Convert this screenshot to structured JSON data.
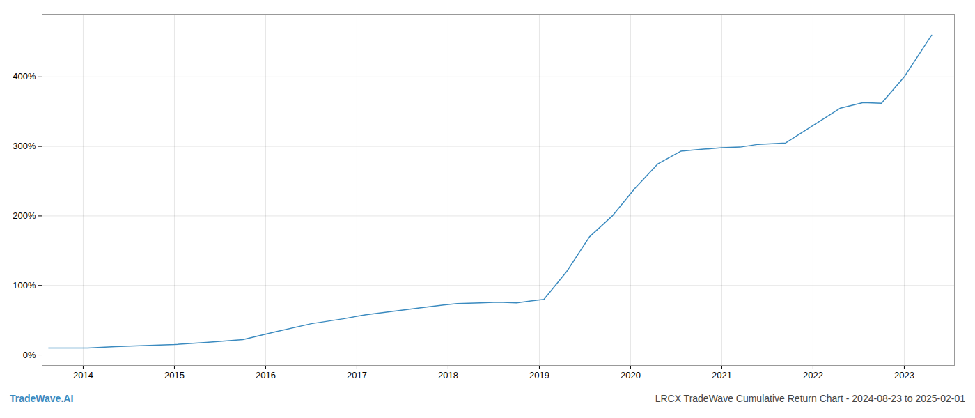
{
  "chart_data": {
    "type": "line",
    "title": "LRCX TradeWave Cumulative Return Chart - 2024-08-23 to 2025-02-01",
    "annotations": [
      "TradeWave.AI"
    ],
    "color": "#3a8abf",
    "x": [
      2013.62,
      2014.05,
      2014.35,
      2015.0,
      2015.35,
      2015.75,
      2016.1,
      2016.5,
      2016.85,
      2017.1,
      2017.4,
      2017.7,
      2017.95,
      2018.1,
      2018.35,
      2018.55,
      2018.75,
      2019.05,
      2019.3,
      2019.55,
      2019.8,
      2020.05,
      2020.3,
      2020.55,
      2020.8,
      2021.0,
      2021.2,
      2021.4,
      2021.7,
      2022.0,
      2022.3,
      2022.55,
      2022.75,
      2023.0,
      2023.3
    ],
    "values": [
      10,
      10,
      12,
      15,
      18,
      22,
      33,
      45,
      52,
      58,
      63,
      68,
      72,
      74,
      75,
      76,
      75,
      80,
      120,
      170,
      200,
      240,
      275,
      293,
      296,
      298,
      299,
      303,
      305,
      330,
      355,
      363,
      362,
      400,
      460
    ],
    "xlim": [
      2013.55,
      2023.55
    ],
    "xticks": [
      2014,
      2015,
      2016,
      2017,
      2018,
      2019,
      2020,
      2021,
      2022,
      2023
    ],
    "ylim": [
      -15,
      490
    ],
    "yticks": [
      {
        "value": 0,
        "label": "0%"
      },
      {
        "value": 100,
        "label": "100%"
      },
      {
        "value": 200,
        "label": "200%"
      },
      {
        "value": 300,
        "label": "300%"
      },
      {
        "value": 400,
        "label": "400%"
      }
    ],
    "grid": true
  }
}
